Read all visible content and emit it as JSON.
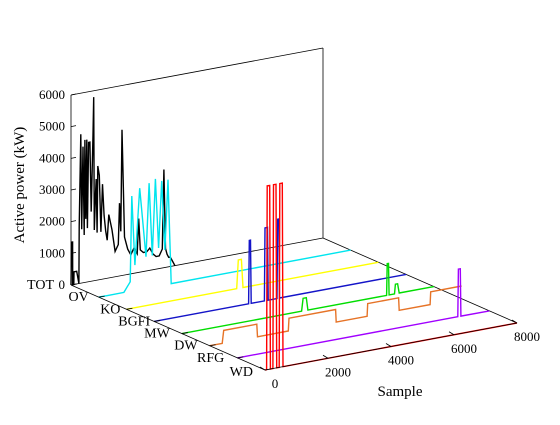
{
  "chart_data": {
    "type": "line",
    "view": "3d-waterfall",
    "title": "",
    "zlabel": "Active power (kW)",
    "xlabel": "Sample",
    "zlim": [
      0,
      6000
    ],
    "xlim": [
      0,
      8000
    ],
    "z_ticks": [
      "0",
      "1000",
      "2000",
      "3000",
      "4000",
      "5000",
      "6000"
    ],
    "x_ticks": [
      "0",
      "2000",
      "4000",
      "6000",
      "8000"
    ],
    "categories": [
      "TOT",
      "OV",
      "KO",
      "BGFI",
      "MW",
      "DW",
      "RFG",
      "WD"
    ],
    "grid": false,
    "series": [
      {
        "name": "TOT",
        "color": "#000000",
        "x": [
          0,
          20,
          50,
          55,
          90,
          95,
          180,
          250,
          260,
          310,
          340,
          380,
          420,
          440,
          470,
          500,
          520,
          560,
          600,
          640,
          700,
          720,
          740,
          780,
          800,
          830,
          850,
          900,
          950,
          1000,
          1050,
          1100,
          1150,
          1200,
          1300,
          1400,
          1500,
          1540,
          1580,
          1620,
          1700,
          1800,
          1900,
          2000,
          2100,
          2150,
          2200,
          2300,
          2350,
          2400,
          2500,
          2600,
          2700,
          2800,
          2900,
          2950,
          3000,
          3050,
          3100,
          3150,
          3200,
          3300
        ],
        "y": [
          0,
          1350,
          1350,
          0,
          0,
          400,
          400,
          0,
          1800,
          4700,
          1700,
          4300,
          1500,
          4500,
          2000,
          4500,
          1700,
          4400,
          4400,
          2200,
          4600,
          5800,
          1600,
          2800,
          3200,
          1500,
          3600,
          3300,
          1500,
          3000,
          2000,
          1500,
          1200,
          2000,
          1500,
          800,
          1000,
          2300,
          1400,
          4600,
          1200,
          800,
          600,
          800,
          600,
          1700,
          700,
          600,
          600,
          600,
          700,
          500,
          400,
          400,
          600,
          3100,
          600,
          400,
          300,
          300,
          200,
          0
        ]
      },
      {
        "name": "OV",
        "color": "#00e5ee",
        "x": [
          0,
          300,
          800,
          1000,
          1050,
          1150,
          1300,
          1500,
          1600,
          1700,
          1800,
          1900,
          2000,
          2100,
          2200,
          2300,
          8000
        ],
        "y": [
          0,
          0,
          0,
          300,
          3000,
          800,
          3200,
          1000,
          3300,
          1000,
          3400,
          1200,
          3300,
          1100,
          3300,
          0,
          0
        ]
      },
      {
        "name": "KO",
        "color": "#ffff00",
        "x": [
          0,
          3500,
          3550,
          3650,
          3700,
          8000
        ],
        "y": [
          0,
          0,
          900,
          900,
          0,
          0
        ]
      },
      {
        "name": "BGFI",
        "color": "#1414c8",
        "x": [
          0,
          3000,
          3020,
          3060,
          3080,
          3500,
          3520,
          3600,
          3620,
          3900,
          3920,
          3960,
          3980,
          8000
        ],
        "y": [
          0,
          0,
          2000,
          2000,
          0,
          0,
          2300,
          2300,
          0,
          0,
          2500,
          2500,
          0,
          0
        ]
      },
      {
        "name": "MW",
        "color": "#00dd00",
        "x": [
          0,
          3800,
          3850,
          3950,
          4000,
          6500,
          6520,
          6560,
          6580,
          6750,
          6780,
          6850,
          6900,
          8000
        ],
        "y": [
          0,
          0,
          400,
          400,
          0,
          0,
          1000,
          1000,
          0,
          0,
          300,
          300,
          0,
          0
        ]
      },
      {
        "name": "DW",
        "color": "#e67327",
        "x": [
          0,
          400,
          450,
          1500,
          1520,
          2500,
          2520,
          4000,
          4020,
          5000,
          5020,
          6000,
          6020,
          7000,
          7020,
          8000
        ],
        "y": [
          0,
          0,
          400,
          400,
          0,
          0,
          400,
          400,
          0,
          0,
          400,
          400,
          0,
          0,
          400,
          400
        ]
      },
      {
        "name": "RFG",
        "color": "#a000ff",
        "x": [
          0,
          7000,
          7020,
          7080,
          7100,
          8000
        ],
        "y": [
          0,
          0,
          1500,
          1500,
          0,
          0
        ]
      },
      {
        "name": "WD",
        "color": "#ff0000",
        "x": [
          0,
          50,
          70,
          150,
          170,
          250,
          270,
          350,
          370,
          450,
          470,
          550,
          570,
          8000
        ],
        "y": [
          0,
          0,
          5800,
          5800,
          0,
          0,
          5800,
          5800,
          0,
          0,
          5800,
          5800,
          0,
          0
        ]
      }
    ]
  }
}
